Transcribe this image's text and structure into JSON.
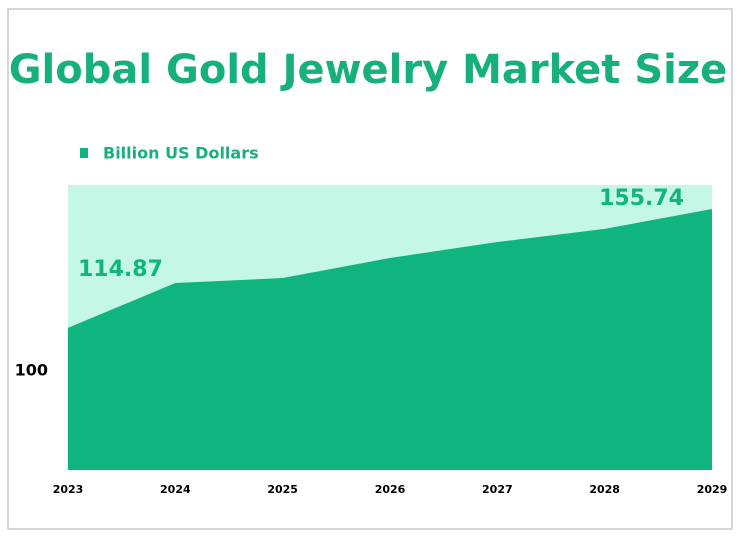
{
  "chart_data": {
    "type": "area",
    "title": "Global Gold Jewelry Market Size",
    "categories": [
      "2023",
      "2024",
      "2025",
      "2026",
      "2027",
      "2028",
      "2029"
    ],
    "series": [
      {
        "name": "Billion US Dollars",
        "color": "#10b47e",
        "values": [
          114.87,
          130.3,
          132.0,
          138.9,
          144.4,
          148.9,
          155.74
        ],
        "value_labels": [
          "114.87",
          null,
          null,
          null,
          null,
          null,
          "155.74"
        ]
      }
    ],
    "plot_background": "#c4f7e5",
    "ylim": [
      66,
      164
    ],
    "yticks": [
      100
    ],
    "grid": false,
    "legend": "top-left"
  }
}
